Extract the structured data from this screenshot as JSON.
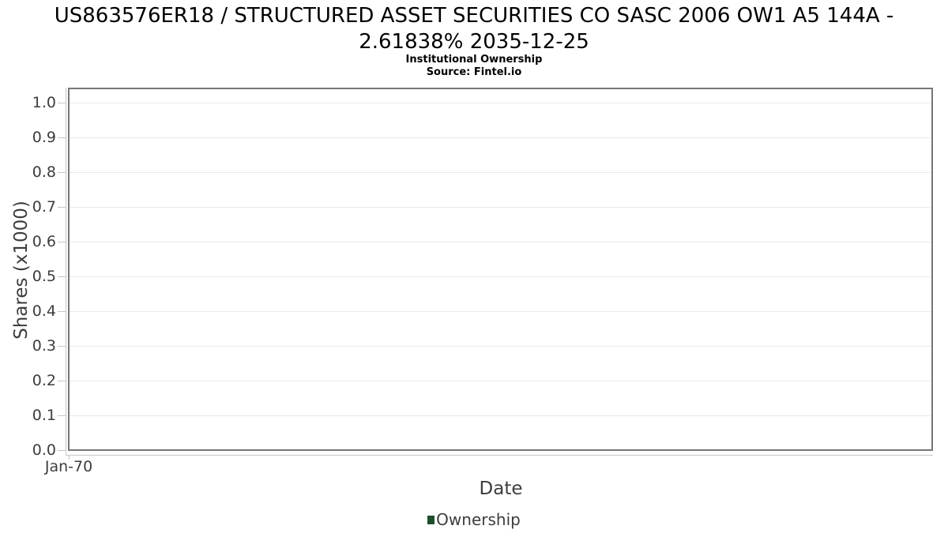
{
  "chart_data": {
    "type": "line",
    "title": "US863576ER18 / STRUCTURED ASSET SECURITIES CO SASC 2006 OW1 A5 144A - 2.61838% 2035-12-25",
    "title_lines": [
      "US863576ER18 / STRUCTURED ASSET SECURITIES CO SASC 2006 OW1 A5 144A -",
      "2.61838% 2035-12-25"
    ],
    "subtitle": "Institutional Ownership",
    "source": "Source: Fintel.io",
    "xlabel": "Date",
    "ylabel": "Shares (x1000)",
    "x_tick_labels": [
      "Jan-70"
    ],
    "y_tick_labels": [
      "0.0",
      "0.1",
      "0.2",
      "0.3",
      "0.4",
      "0.5",
      "0.6",
      "0.7",
      "0.8",
      "0.9",
      "1.0"
    ],
    "y_tick_values": [
      0.0,
      0.1,
      0.2,
      0.3,
      0.4,
      0.5,
      0.6,
      0.7,
      0.8,
      0.9,
      1.0
    ],
    "ylim": [
      0,
      1.045
    ],
    "grid": "horizontal",
    "legend_position": "bottom-center",
    "legend": [
      {
        "label": "Ownership",
        "color": "#1e4e2c"
      }
    ],
    "series": [
      {
        "name": "Ownership",
        "color": "#1e4e2c",
        "x": [],
        "values": []
      }
    ]
  },
  "colors": {
    "plot_border": "#767676",
    "gridline": "#e9e9e9",
    "axis_line": "#c6c6c6",
    "tick_text": "#3d3d3d",
    "title_text": "#000000",
    "legend_swatch": "#1e4e2c"
  }
}
